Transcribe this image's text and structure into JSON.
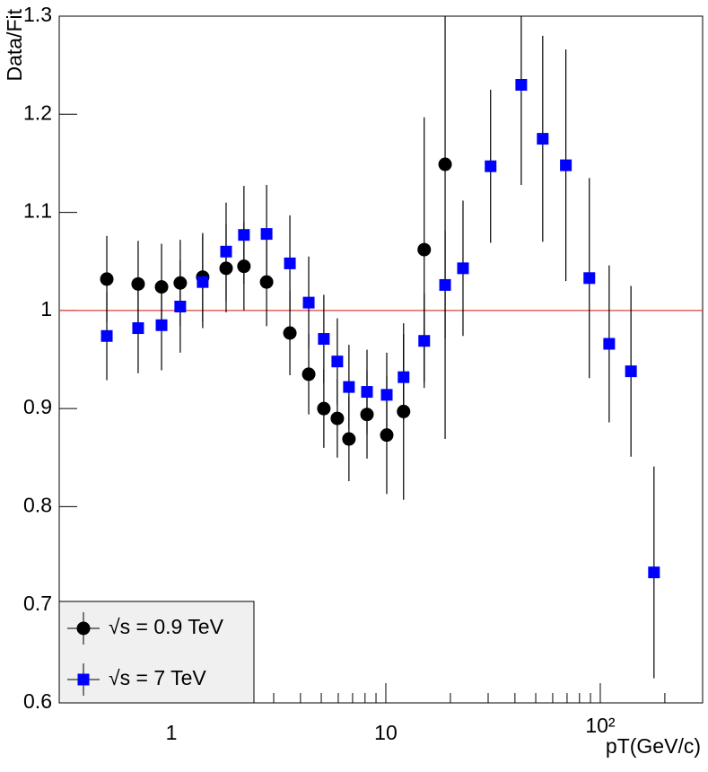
{
  "chart_data": {
    "type": "scatter",
    "xlabel": "pT(GeV/c)",
    "ylabel": "Data/Fit",
    "xlog": true,
    "xlim": [
      0.3,
      300
    ],
    "ylim": [
      0.6,
      1.3
    ],
    "xticks": [
      1,
      10,
      {
        "value": 100,
        "label": "10²"
      }
    ],
    "xminorticks": [
      0.4,
      0.5,
      0.6,
      0.7,
      0.8,
      0.9,
      2,
      3,
      4,
      5,
      6,
      7,
      8,
      9,
      20,
      30,
      40,
      50,
      60,
      70,
      80,
      90,
      200,
      300
    ],
    "yticks": [
      0.6,
      0.7,
      0.8,
      0.9,
      1,
      1.1,
      1.2,
      1.3
    ],
    "hline": 1,
    "hline_color": "#e04040",
    "legend": "bottom-left",
    "series": [
      {
        "name": "√s = 0.9 TeV",
        "color": "#000000",
        "marker": "circle",
        "x": [
          0.5,
          0.7,
          0.9,
          1.1,
          1.4,
          1.8,
          2.18,
          2.78,
          3.57,
          4.37,
          5.14,
          5.94,
          6.73,
          8.17,
          10.1,
          12.1,
          15.1,
          18.9
        ],
        "values": [
          1.032,
          1.027,
          1.024,
          1.028,
          1.034,
          1.043,
          1.045,
          1.029,
          0.977,
          0.935,
          0.9,
          0.89,
          0.869,
          0.894,
          0.873,
          0.897,
          1.062,
          1.149
        ],
        "errors": [
          0.044,
          0.044,
          0.044,
          0.044,
          0.045,
          0.045,
          0.045,
          0.045,
          0.043,
          0.041,
          0.04,
          0.04,
          0.043,
          0.045,
          0.06,
          0.09,
          0.135,
          0.28
        ]
      },
      {
        "name": "√s = 7 TeV",
        "color": "#0000ff",
        "marker": "square",
        "x": [
          0.5,
          0.7,
          0.9,
          1.1,
          1.4,
          1.8,
          2.18,
          2.78,
          3.57,
          4.37,
          5.14,
          5.94,
          6.73,
          8.17,
          10.1,
          12.1,
          15.1,
          18.9,
          22.9,
          30.8,
          42.8,
          53.9,
          69.1,
          88.9,
          110,
          139,
          178
        ],
        "values": [
          0.974,
          0.982,
          0.985,
          1.004,
          1.029,
          1.06,
          1.077,
          1.078,
          1.048,
          1.008,
          0.971,
          0.948,
          0.922,
          0.917,
          0.914,
          0.932,
          0.969,
          1.026,
          1.043,
          1.147,
          1.23,
          1.175,
          1.148,
          1.033,
          0.966,
          0.938,
          0.733
        ],
        "errors": [
          0.045,
          0.046,
          0.046,
          0.047,
          0.047,
          0.05,
          0.05,
          0.05,
          0.049,
          0.047,
          0.045,
          0.044,
          0.043,
          0.043,
          0.043,
          0.044,
          0.048,
          0.055,
          0.069,
          0.078,
          0.102,
          0.105,
          0.118,
          0.102,
          0.08,
          0.087,
          0.108
        ]
      }
    ]
  }
}
